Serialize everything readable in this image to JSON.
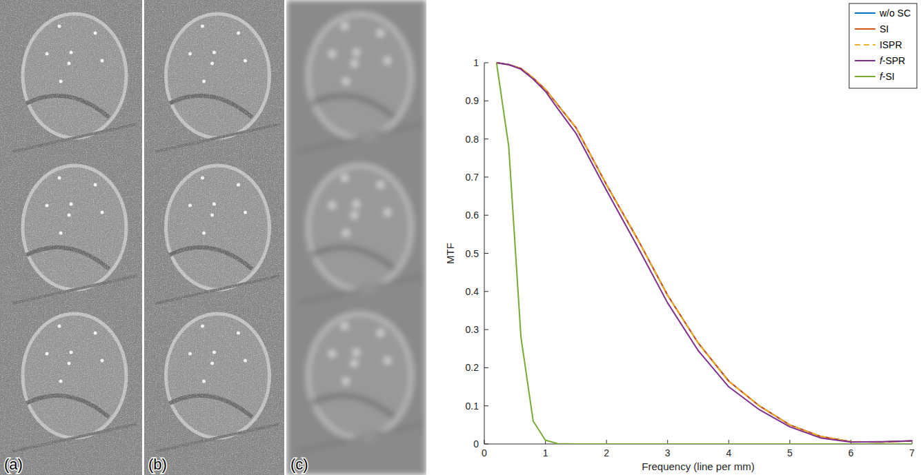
{
  "panel_labels": [
    "(a)",
    "(b)",
    "(c)"
  ],
  "chart_data": {
    "type": "line",
    "x_label": "Frequency (line per mm)",
    "y_label": "MTF",
    "x": [
      0.2,
      0.4,
      0.6,
      0.8,
      1,
      1.2,
      1.5,
      2,
      2.5,
      3,
      3.5,
      4,
      4.5,
      5,
      5.5,
      6,
      6.5,
      7
    ],
    "series": [
      {
        "name": "w/o SC",
        "color": "#0072BD",
        "line_style": "solid",
        "values": [
          1,
          0.995,
          0.985,
          0.96,
          0.93,
          0.89,
          0.83,
          0.68,
          0.54,
          0.39,
          0.265,
          0.165,
          0.1,
          0.05,
          0.02,
          0.006,
          0.005,
          0.008
        ]
      },
      {
        "name": "SI",
        "color": "#D95319",
        "line_style": "solid",
        "values": [
          1,
          0.995,
          0.985,
          0.96,
          0.93,
          0.89,
          0.83,
          0.68,
          0.54,
          0.39,
          0.265,
          0.165,
          0.1,
          0.05,
          0.02,
          0.006,
          0.005,
          0.008
        ]
      },
      {
        "name": "ISPR",
        "color": "#EDB120",
        "line_style": "dashed",
        "values": [
          1,
          0.995,
          0.985,
          0.96,
          0.93,
          0.89,
          0.83,
          0.68,
          0.54,
          0.39,
          0.265,
          0.165,
          0.1,
          0.05,
          0.02,
          0.006,
          0.005,
          0.008
        ]
      },
      {
        "name": "f-SPR",
        "color": "#7E2F8E",
        "line_style": "solid",
        "values": [
          1,
          0.995,
          0.983,
          0.957,
          0.925,
          0.88,
          0.815,
          0.665,
          0.52,
          0.37,
          0.245,
          0.15,
          0.09,
          0.045,
          0.016,
          0.005,
          0.006,
          0.008
        ]
      },
      {
        "name": "f-SI",
        "color": "#77AC30",
        "line_style": "solid",
        "values": [
          1,
          0.78,
          0.28,
          0.06,
          0.01,
          0.001,
          0,
          0,
          0,
          0,
          0,
          0,
          0,
          0,
          0,
          0,
          0,
          0
        ]
      }
    ],
    "xlim": [
      0,
      7
    ],
    "ylim": [
      0,
      1
    ],
    "xticks": [
      0,
      1,
      2,
      3,
      4,
      5,
      6,
      7
    ],
    "yticks": [
      0,
      0.1,
      0.2,
      0.3,
      0.4,
      0.5,
      0.6,
      0.7,
      0.8,
      0.9,
      1
    ],
    "legend": "upper right",
    "grid": false
  }
}
